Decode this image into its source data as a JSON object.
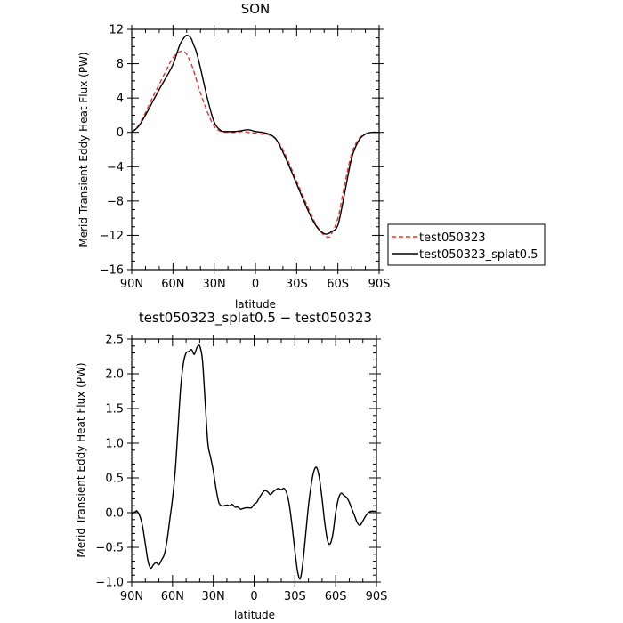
{
  "colors": {
    "background": "#ffffff",
    "axis": "#000000",
    "series1": "#e8312a",
    "series2": "#000000"
  },
  "chart_data": [
    {
      "type": "line",
      "title": "SON",
      "xlabel": "latitude",
      "ylabel": "Merid Transient Eddy Heat Flux (PW)",
      "xlim": [
        90,
        -90
      ],
      "ylim": [
        -16,
        12
      ],
      "xticks": [
        90,
        60,
        30,
        0,
        -30,
        -60,
        -90
      ],
      "xtick_labels": [
        "90N",
        "60N",
        "30N",
        "0",
        "30S",
        "60S",
        "90S"
      ],
      "yticks": [
        -16,
        -12,
        -8,
        -4,
        0,
        4,
        8,
        12
      ],
      "ytick_labels": [
        "−16",
        "−12",
        "−8",
        "−4",
        "0",
        "4",
        "8",
        "12"
      ],
      "legend_position": "right",
      "series": [
        {
          "name": "test050323",
          "style": "dashed",
          "color": "#e8312a",
          "x": [
            90,
            85,
            80,
            75,
            70,
            65,
            60,
            55,
            52,
            50,
            47,
            45,
            40,
            35,
            30,
            25,
            20,
            15,
            10,
            5,
            0,
            -5,
            -10,
            -15,
            -20,
            -25,
            -30,
            -35,
            -40,
            -45,
            -50,
            -53,
            -55,
            -60,
            -65,
            -70,
            -75,
            -80,
            -85,
            -90
          ],
          "y": [
            0,
            0.8,
            2.3,
            4.0,
            5.6,
            7.2,
            8.7,
            9.4,
            9.4,
            9.1,
            8.1,
            7.2,
            4.6,
            2.4,
            0.7,
            0.1,
            0.0,
            0.0,
            0.1,
            0.0,
            -0.1,
            -0.2,
            -0.3,
            -0.8,
            -2.0,
            -3.8,
            -5.7,
            -7.6,
            -9.4,
            -11.0,
            -12.0,
            -12.2,
            -11.9,
            -10.0,
            -6.0,
            -2.5,
            -0.8,
            -0.2,
            0,
            0
          ]
        },
        {
          "name": "test050323_splat0.5",
          "style": "solid",
          "color": "#000000",
          "x": [
            90,
            85,
            80,
            75,
            70,
            65,
            60,
            55,
            52,
            50,
            47,
            45,
            43,
            40,
            35,
            30,
            25,
            20,
            15,
            10,
            5,
            0,
            -5,
            -10,
            -15,
            -20,
            -25,
            -30,
            -35,
            -40,
            -45,
            -50,
            -53,
            -55,
            -60,
            -65,
            -70,
            -75,
            -80,
            -85,
            -90
          ],
          "y": [
            0,
            0.7,
            2.0,
            3.5,
            5.0,
            6.4,
            7.9,
            10.2,
            11.0,
            11.3,
            11.0,
            10.2,
            9.4,
            7.5,
            4.0,
            1.2,
            0.2,
            0.1,
            0.1,
            0.2,
            0.3,
            0.1,
            0.0,
            -0.2,
            -0.8,
            -2.3,
            -4.1,
            -6.0,
            -7.9,
            -9.7,
            -11.1,
            -11.8,
            -11.8,
            -11.6,
            -10.8,
            -7.0,
            -3.0,
            -1.0,
            -0.2,
            0,
            0
          ]
        }
      ]
    },
    {
      "type": "line",
      "title": "test050323_splat0.5 − test050323",
      "xlabel": "latitude",
      "ylabel": "Merid Transient Eddy Heat Flux (PW)",
      "xlim": [
        90,
        -90
      ],
      "ylim": [
        -1.0,
        2.5
      ],
      "xticks": [
        90,
        60,
        30,
        0,
        -30,
        -60,
        -90
      ],
      "xtick_labels": [
        "90N",
        "60N",
        "30N",
        "0",
        "30S",
        "60S",
        "90S"
      ],
      "yticks": [
        -1.0,
        -0.5,
        0.0,
        0.5,
        1.0,
        1.5,
        2.0,
        2.5
      ],
      "ytick_labels": [
        "−1.0",
        "−0.5",
        "0.0",
        "0.5",
        "1.0",
        "1.5",
        "2.0",
        "2.5"
      ],
      "series": [
        {
          "color": "#000000",
          "style": "solid",
          "x": [
            90,
            87,
            86,
            84,
            82,
            80,
            78,
            76,
            74,
            72,
            70,
            68,
            66,
            64,
            62,
            60,
            58,
            56,
            54,
            52,
            50,
            48,
            46,
            44,
            42,
            40,
            38,
            36,
            34,
            32,
            30,
            28,
            26,
            24,
            22,
            20,
            18,
            16,
            14,
            12,
            10,
            8,
            6,
            4,
            2,
            0,
            -2,
            -4,
            -6,
            -8,
            -10,
            -12,
            -14,
            -16,
            -18,
            -20,
            -22,
            -24,
            -26,
            -28,
            -30,
            -32,
            -34,
            -36,
            -38,
            -40,
            -42,
            -44,
            -46,
            -48,
            -50,
            -52,
            -54,
            -56,
            -58,
            -60,
            -62,
            -64,
            -66,
            -68,
            -70,
            -72,
            -74,
            -76,
            -78,
            -80,
            -82,
            -84,
            -86,
            -88,
            -90
          ],
          "y": [
            -0.02,
            0.02,
            0.02,
            -0.05,
            -0.2,
            -0.45,
            -0.7,
            -0.8,
            -0.75,
            -0.72,
            -0.75,
            -0.68,
            -0.6,
            -0.4,
            -0.1,
            0.2,
            0.6,
            1.2,
            1.8,
            2.15,
            2.3,
            2.32,
            2.35,
            2.28,
            2.38,
            2.4,
            2.2,
            1.6,
            1.0,
            0.8,
            0.6,
            0.35,
            0.15,
            0.1,
            0.1,
            0.11,
            0.1,
            0.12,
            0.08,
            0.08,
            0.05,
            0.06,
            0.07,
            0.07,
            0.07,
            0.12,
            0.15,
            0.22,
            0.28,
            0.32,
            0.3,
            0.26,
            0.3,
            0.33,
            0.35,
            0.33,
            0.35,
            0.28,
            0.1,
            -0.2,
            -0.55,
            -0.85,
            -0.95,
            -0.7,
            -0.3,
            0.1,
            0.4,
            0.6,
            0.65,
            0.5,
            0.2,
            -0.15,
            -0.4,
            -0.45,
            -0.3,
            0.0,
            0.2,
            0.28,
            0.25,
            0.22,
            0.15,
            0.05,
            -0.05,
            -0.15,
            -0.18,
            -0.12,
            -0.05,
            0.0,
            0.02,
            0.02,
            0.02
          ]
        }
      ]
    }
  ]
}
